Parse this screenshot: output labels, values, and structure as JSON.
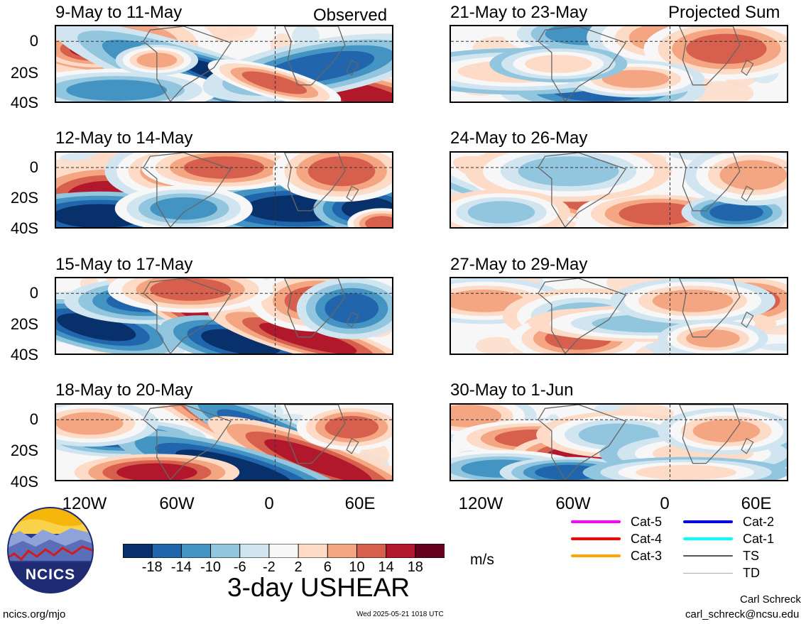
{
  "figure": {
    "observed_label": "Observed",
    "projected_label": "Projected Sum",
    "main_title": "3-day USHEAR",
    "units": "m/s",
    "website": "ncics.org/mjo",
    "timestamp": "Wed 2025-05-21 1018 UTC",
    "author": "Carl Schreck",
    "email": "carl_schreck@ncsu.edu",
    "logo_text": "NCICS"
  },
  "chart_data": {
    "type": "heatmap",
    "variable": "3-day USHEAR",
    "units": "m/s",
    "lat_ticks": [
      "0",
      "20S",
      "40S"
    ],
    "lon_ticks": [
      "120W",
      "60W",
      "0",
      "60E"
    ],
    "lat_range": [
      -40,
      10
    ],
    "lon_range": [
      "150W",
      "80E"
    ],
    "panels": [
      {
        "title": "9-May to 11-May",
        "group": "Observed"
      },
      {
        "title": "12-May to 14-May",
        "group": "Observed"
      },
      {
        "title": "15-May to 17-May",
        "group": "Observed"
      },
      {
        "title": "18-May to 20-May",
        "group": "Observed"
      },
      {
        "title": "21-May to 23-May",
        "group": "Projected Sum"
      },
      {
        "title": "24-May to 26-May",
        "group": "Projected Sum"
      },
      {
        "title": "27-May to 29-May",
        "group": "Projected Sum"
      },
      {
        "title": "30-May to 1-Jun",
        "group": "Projected Sum"
      }
    ],
    "colorbar": {
      "ticks": [
        "-18",
        "-14",
        "-10",
        "-6",
        "-2",
        "2",
        "6",
        "10",
        "14",
        "18"
      ],
      "colors": [
        "#08306b",
        "#2166ac",
        "#4393c3",
        "#92c5de",
        "#d1e5f0",
        "#f7f7f7",
        "#fddbc7",
        "#f4a582",
        "#d6604d",
        "#b2182b",
        "#67001f"
      ]
    },
    "legend": [
      {
        "label": "Cat-5",
        "color": "#ff00ff"
      },
      {
        "label": "Cat-4",
        "color": "#ff0000"
      },
      {
        "label": "Cat-3",
        "color": "#ffa500"
      },
      {
        "label": "Cat-2",
        "color": "#0000ff"
      },
      {
        "label": "Cat-1",
        "color": "#00ffff"
      },
      {
        "label": "TS",
        "color": "#555555"
      },
      {
        "label": "TD",
        "color": "#aaaaaa"
      }
    ]
  }
}
